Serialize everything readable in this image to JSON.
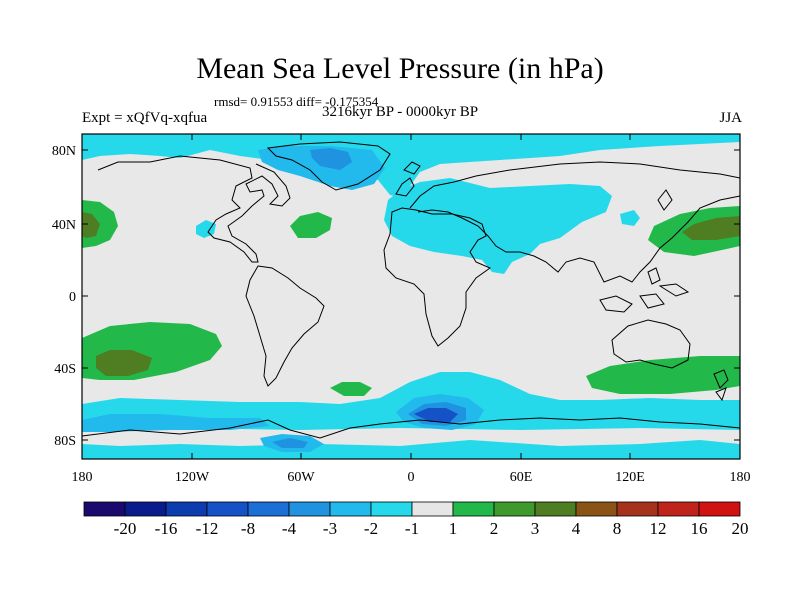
{
  "figure": {
    "title": "Mean Sea Level Pressure (in hPa)",
    "stats": "rmsd= 0.91553 diff= -0.175354",
    "experiment": "Expt = xQfVq-xqfua",
    "period": "3216kyr BP - 0000kyr BP",
    "season": "JJA"
  },
  "axes": {
    "lat_labels": [
      "80N",
      "40N",
      "0",
      "40S",
      "80S"
    ],
    "lon_labels": [
      "180",
      "120W",
      "60W",
      "0",
      "60E",
      "120E",
      "180"
    ]
  },
  "colorbar": {
    "colors": [
      "#1b0a6e",
      "#0a1b8e",
      "#0d3bb0",
      "#1552c8",
      "#1b6fd6",
      "#1f93e0",
      "#22b9ec",
      "#26d9ea",
      "#e6e6e6",
      "#22b94a",
      "#3f9a2d",
      "#4e7d22",
      "#8a5417",
      "#a7321c",
      "#c0231a",
      "#d11212"
    ],
    "labels": [
      "-20",
      "-16",
      "-12",
      "-8",
      "-4",
      "-3",
      "-2",
      "-1",
      "1",
      "2",
      "3",
      "4",
      "8",
      "12",
      "16",
      "20"
    ]
  },
  "field_colors": {
    "background": "#e8e8e8",
    "neg_1_2": "#26d9ea",
    "neg_2_3": "#22b9ec",
    "neg_3_4": "#1f93e0",
    "neg_4_8": "#1b6fd6",
    "neg_8_12": "#1552c8",
    "pos_1_2": "#22b94a",
    "pos_2_3": "#3f9a2d",
    "pos_3_4": "#4e7d22"
  }
}
